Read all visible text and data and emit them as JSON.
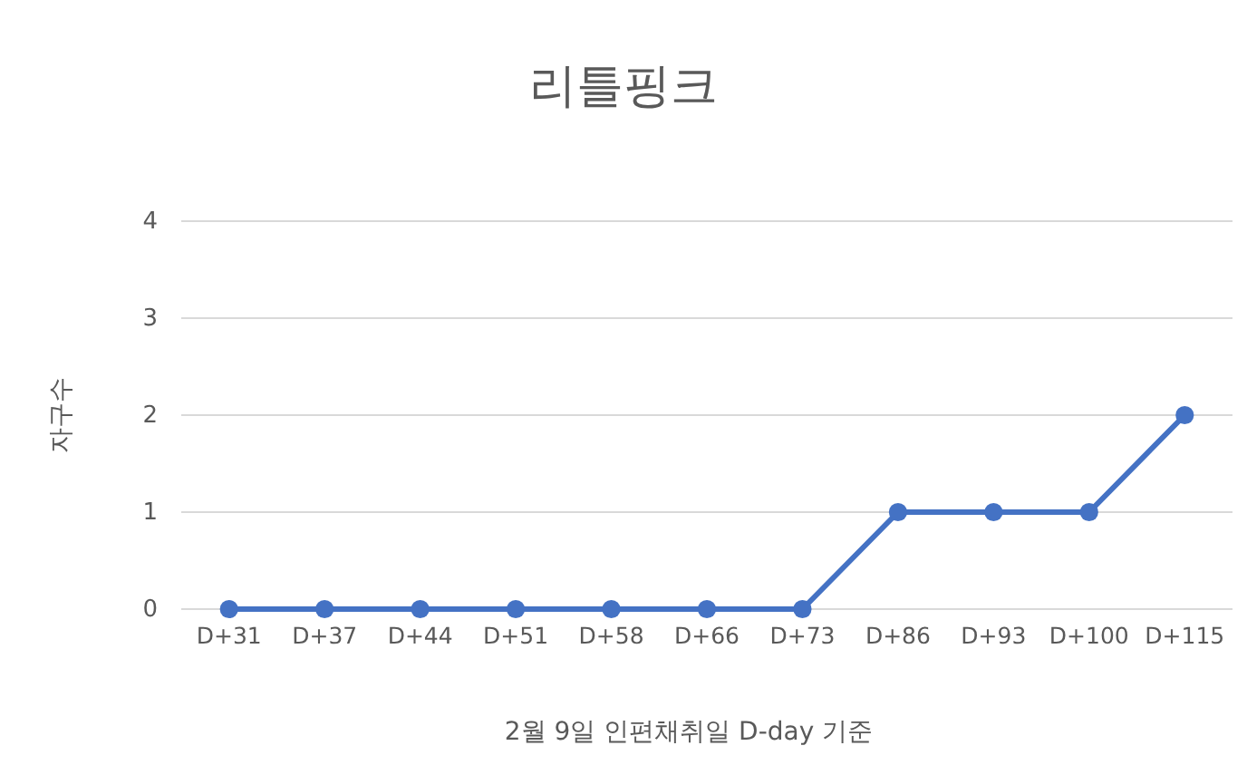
{
  "chart_data": {
    "type": "line",
    "title": "리틀핑크",
    "xlabel": "2월 9일 인편채취일 D-day 기준",
    "ylabel": "자구수",
    "categories": [
      "D+31",
      "D+37",
      "D+44",
      "D+51",
      "D+58",
      "D+66",
      "D+73",
      "D+86",
      "D+93",
      "D+100",
      "D+115"
    ],
    "series": [
      {
        "color": "#4472c4",
        "values": [
          0,
          0,
          0,
          0,
          0,
          0,
          0,
          1,
          1,
          1,
          2
        ]
      }
    ],
    "ylim": [
      0,
      4
    ],
    "yticks": [
      0,
      1,
      2,
      3,
      4
    ],
    "grid": "y",
    "marker": "circle",
    "line_style": "solid"
  }
}
